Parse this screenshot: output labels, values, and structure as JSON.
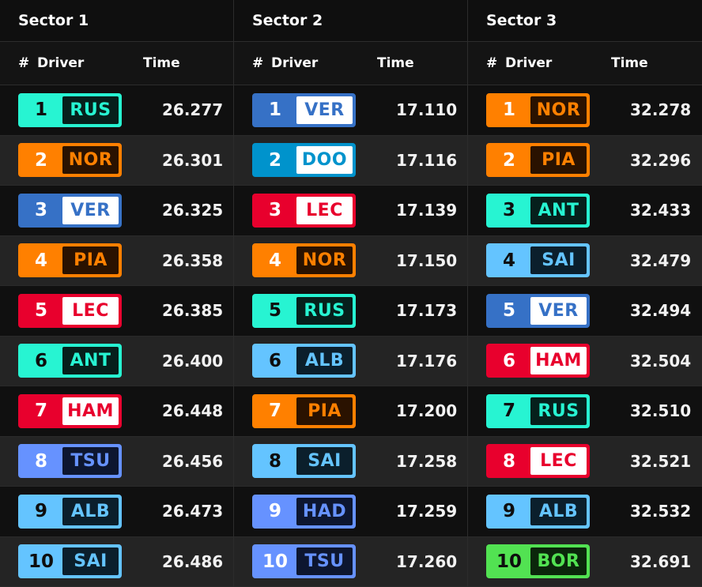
{
  "teams": {
    "mercedes": {
      "accent": "#27F4D2",
      "text_light": "#0b2a26",
      "text_dark": "#27F4D2",
      "style": "dark"
    },
    "mclaren": {
      "accent": "#FF8000",
      "text_dark": "#FF8000",
      "style": "dark"
    },
    "redbull": {
      "accent": "#3671C6",
      "text_dark": "#3671C6",
      "style": "light"
    },
    "alpine": {
      "accent": "#0093CC",
      "text_dark": "#0093CC",
      "style": "light"
    },
    "ferrari": {
      "accent": "#E8002D",
      "text_dark": "#E8002D",
      "style": "light"
    },
    "williams": {
      "accent": "#64C4FF",
      "text_dark": "#64C4FF",
      "style": "dark"
    },
    "racingbulls": {
      "accent": "#6692FF",
      "text_dark": "#6692FF",
      "style": "dark"
    },
    "sauber": {
      "accent": "#52E252",
      "text_dark": "#52E252",
      "style": "dark"
    }
  },
  "sectors": [
    {
      "title": "Sector 1",
      "columns": {
        "pos": "#",
        "driver": "Driver",
        "time": "Time"
      },
      "rows": [
        {
          "pos": "1",
          "driver": "RUS",
          "team": "mercedes",
          "time": "26.277"
        },
        {
          "pos": "2",
          "driver": "NOR",
          "team": "mclaren",
          "time": "26.301"
        },
        {
          "pos": "3",
          "driver": "VER",
          "team": "redbull",
          "time": "26.325"
        },
        {
          "pos": "4",
          "driver": "PIA",
          "team": "mclaren",
          "time": "26.358"
        },
        {
          "pos": "5",
          "driver": "LEC",
          "team": "ferrari",
          "time": "26.385"
        },
        {
          "pos": "6",
          "driver": "ANT",
          "team": "mercedes",
          "time": "26.400"
        },
        {
          "pos": "7",
          "driver": "HAM",
          "team": "ferrari",
          "time": "26.448"
        },
        {
          "pos": "8",
          "driver": "TSU",
          "team": "racingbulls",
          "time": "26.456"
        },
        {
          "pos": "9",
          "driver": "ALB",
          "team": "williams",
          "time": "26.473"
        },
        {
          "pos": "10",
          "driver": "SAI",
          "team": "williams",
          "time": "26.486"
        }
      ]
    },
    {
      "title": "Sector 2",
      "columns": {
        "pos": "#",
        "driver": "Driver",
        "time": "Time"
      },
      "rows": [
        {
          "pos": "1",
          "driver": "VER",
          "team": "redbull",
          "time": "17.110"
        },
        {
          "pos": "2",
          "driver": "DOO",
          "team": "alpine",
          "time": "17.116"
        },
        {
          "pos": "3",
          "driver": "LEC",
          "team": "ferrari",
          "time": "17.139"
        },
        {
          "pos": "4",
          "driver": "NOR",
          "team": "mclaren",
          "time": "17.150"
        },
        {
          "pos": "5",
          "driver": "RUS",
          "team": "mercedes",
          "time": "17.173"
        },
        {
          "pos": "6",
          "driver": "ALB",
          "team": "williams",
          "time": "17.176"
        },
        {
          "pos": "7",
          "driver": "PIA",
          "team": "mclaren",
          "time": "17.200"
        },
        {
          "pos": "8",
          "driver": "SAI",
          "team": "williams",
          "time": "17.258"
        },
        {
          "pos": "9",
          "driver": "HAD",
          "team": "racingbulls",
          "time": "17.259"
        },
        {
          "pos": "10",
          "driver": "TSU",
          "team": "racingbulls",
          "time": "17.260"
        }
      ]
    },
    {
      "title": "Sector 3",
      "columns": {
        "pos": "#",
        "driver": "Driver",
        "time": "Time"
      },
      "rows": [
        {
          "pos": "1",
          "driver": "NOR",
          "team": "mclaren",
          "time": "32.278"
        },
        {
          "pos": "2",
          "driver": "PIA",
          "team": "mclaren",
          "time": "32.296"
        },
        {
          "pos": "3",
          "driver": "ANT",
          "team": "mercedes",
          "time": "32.433"
        },
        {
          "pos": "4",
          "driver": "SAI",
          "team": "williams",
          "time": "32.479"
        },
        {
          "pos": "5",
          "driver": "VER",
          "team": "redbull",
          "time": "32.494"
        },
        {
          "pos": "6",
          "driver": "HAM",
          "team": "ferrari",
          "time": "32.504"
        },
        {
          "pos": "7",
          "driver": "RUS",
          "team": "mercedes",
          "time": "32.510"
        },
        {
          "pos": "8",
          "driver": "LEC",
          "team": "ferrari",
          "time": "32.521"
        },
        {
          "pos": "9",
          "driver": "ALB",
          "team": "williams",
          "time": "32.532"
        },
        {
          "pos": "10",
          "driver": "BOR",
          "team": "sauber",
          "time": "32.691"
        }
      ]
    }
  ]
}
